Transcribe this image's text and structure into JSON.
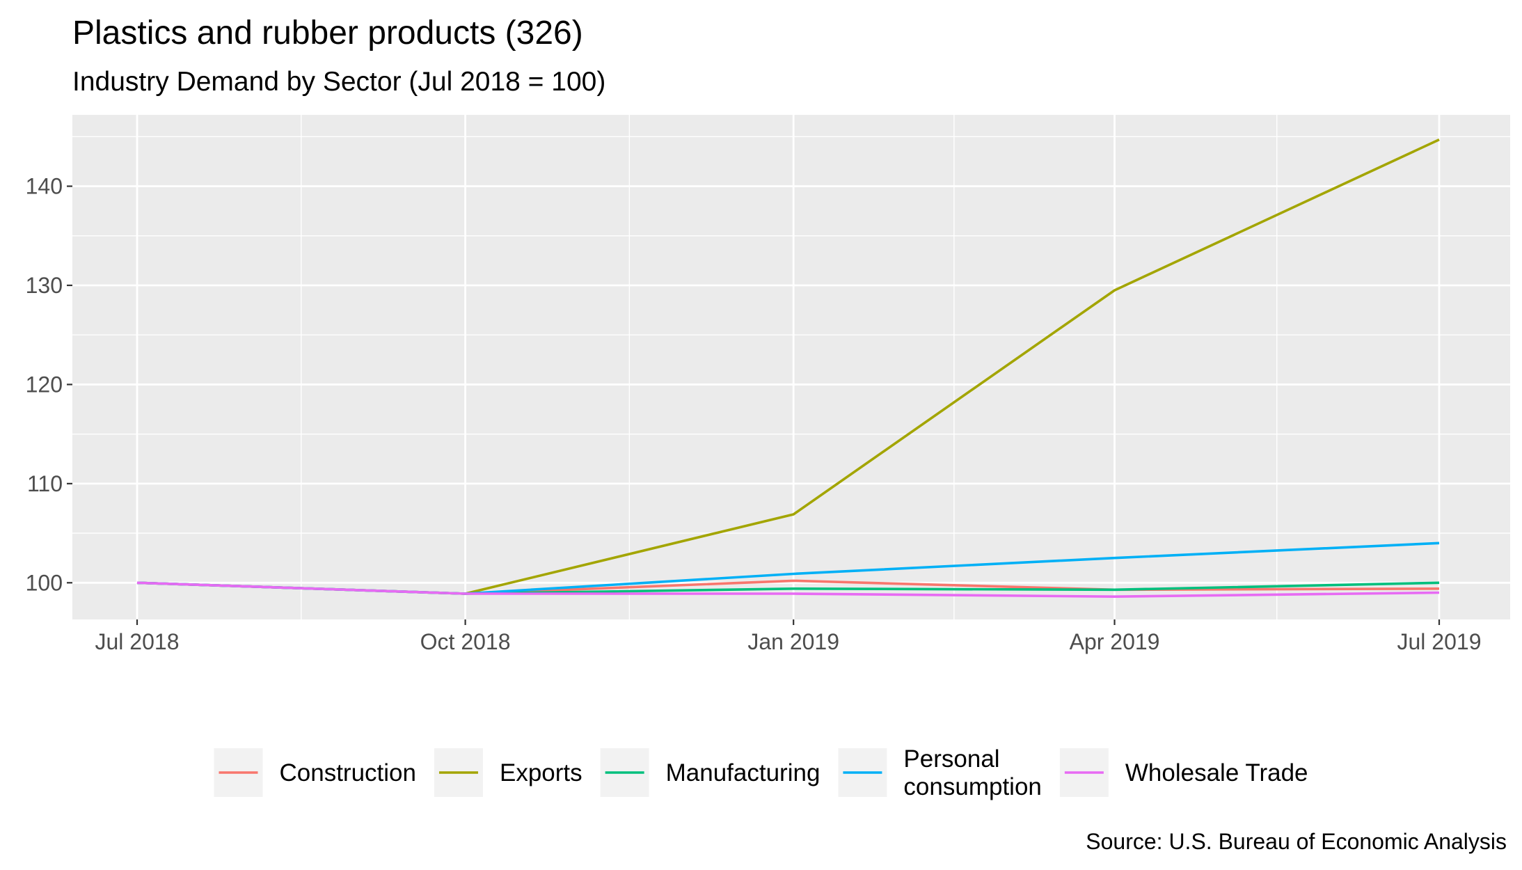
{
  "chart_data": {
    "type": "line",
    "title": "Plastics and rubber products (326)",
    "subtitle": "Industry Demand by Sector (Jul 2018 = 100)",
    "caption": "Source: U.S. Bureau of Economic Analysis",
    "xlabel": "",
    "ylabel": "",
    "x": [
      "2018-07-01",
      "2018-10-01",
      "2019-01-01",
      "2019-04-01",
      "2019-07-01"
    ],
    "x_tick_labels": [
      "Jul 2018",
      "Oct 2018",
      "Jan 2019",
      "Apr 2019",
      "Jul 2019"
    ],
    "y_ticks": [
      100,
      110,
      120,
      130,
      140
    ],
    "ylim": [
      96.3,
      147.2
    ],
    "grid": true,
    "legend_position": "bottom",
    "series": [
      {
        "name": "Construction",
        "color": "#F8766D",
        "values": [
          100.0,
          98.9,
          100.2,
          99.3,
          99.4
        ]
      },
      {
        "name": "Exports",
        "color": "#A3A500",
        "values": [
          100.0,
          98.9,
          106.9,
          129.5,
          144.7
        ]
      },
      {
        "name": "Manufacturing",
        "color": "#00BF7D",
        "values": [
          100.0,
          98.9,
          99.4,
          99.3,
          100.0
        ]
      },
      {
        "name": "Personal\nconsumption",
        "color": "#00B0F6",
        "values": [
          100.0,
          98.9,
          100.9,
          102.5,
          104.0
        ]
      },
      {
        "name": "Wholesale Trade",
        "color": "#E76BF3",
        "values": [
          100.0,
          98.9,
          98.9,
          98.6,
          99.0
        ]
      }
    ]
  }
}
